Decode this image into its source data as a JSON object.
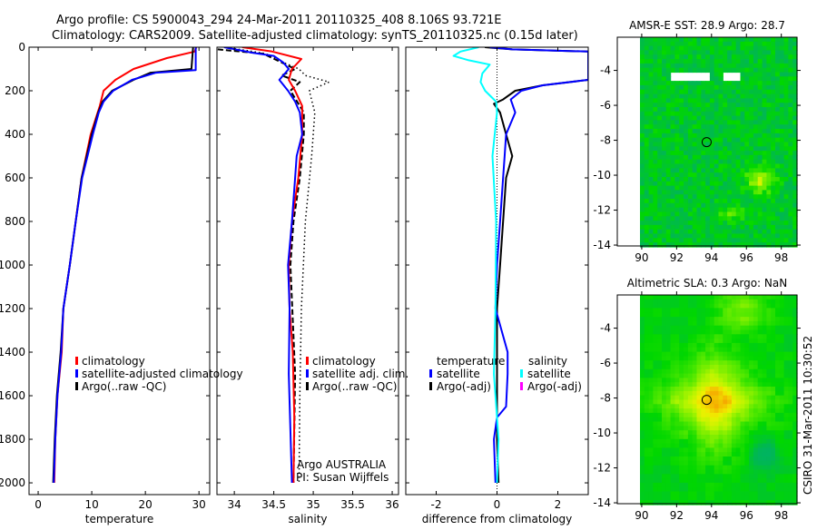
{
  "header": {
    "line1": "Argo profile: CS 5900043_294 24-Mar-2011 20110325_408 8.106S 93.721E",
    "line2": "Climatology: CARS2009. Satellite-adjusted climatology: synTS_20110325.nc (0.15d later)"
  },
  "footer_stamp": "CSIRO 31-Mar-2011 10:30:52",
  "colors": {
    "climatology": "#ff0000",
    "satellite": "#0000ff",
    "argo": "#000000",
    "salinity_satellite": "#00ffff",
    "salinity_argo": "#ff00ff"
  },
  "chart_data": [
    {
      "type": "line",
      "id": "temperature",
      "xlabel": "temperature",
      "ylabel": "",
      "xlim": [
        -1.7,
        32
      ],
      "ylim": [
        2054,
        0
      ],
      "xticks": [
        0,
        10,
        20,
        30
      ],
      "xtick_labels": [
        "0",
        "10",
        "20",
        "30"
      ],
      "yticks": [
        0,
        200,
        400,
        600,
        800,
        1000,
        1200,
        1400,
        1600,
        1800,
        2000
      ],
      "ytick_labels": [
        "0",
        "200",
        "400",
        "600",
        "800",
        "1000",
        "1200",
        "1400",
        "1600",
        "1800",
        "2000"
      ],
      "legend": [
        "climatology",
        "satellite-adjusted climatology",
        "Argo(..raw -QC)"
      ],
      "series": [
        {
          "name": "climatology",
          "color": "#ff0000",
          "style": "solid",
          "depth": [
            0,
            20,
            50,
            100,
            150,
            200,
            270,
            400,
            600,
            800,
            1000,
            1200,
            1400,
            1600,
            1800,
            2000
          ],
          "values": [
            29.5,
            29.2,
            24,
            17.8,
            14.4,
            12.2,
            11.5,
            9.8,
            8.1,
            7.0,
            5.9,
            4.7,
            4.4,
            3.6,
            3.2,
            3.0
          ]
        },
        {
          "name": "Argo",
          "color": "#000000",
          "style": "solid",
          "depth": [
            0,
            100,
            117,
            150,
            200,
            250,
            300,
            400,
            600,
            800,
            1000,
            1200,
            1400,
            1600,
            1800,
            2000
          ],
          "values": [
            28.9,
            28.6,
            21,
            17.8,
            13.8,
            12.0,
            11.2,
            10.0,
            8.1,
            7.0,
            5.9,
            4.7,
            4.2,
            3.5,
            3.1,
            2.8
          ]
        },
        {
          "name": "satellite-adjusted climatology",
          "color": "#0000ff",
          "style": "solid",
          "depth": [
            0,
            105,
            117,
            150,
            200,
            250,
            300,
            400,
            600,
            800,
            1000,
            1200,
            1400,
            1600,
            1800,
            2000
          ],
          "values": [
            29.4,
            29.4,
            22,
            17.5,
            14.0,
            12.2,
            11.3,
            10.2,
            8.2,
            7.0,
            5.9,
            4.7,
            4.3,
            3.6,
            3.2,
            2.9
          ]
        }
      ]
    },
    {
      "type": "line",
      "id": "salinity",
      "xlabel": "salinity",
      "xlim": [
        33.78,
        36.08
      ],
      "ylim": [
        2054,
        0
      ],
      "xticks": [
        34,
        34.5,
        35,
        35.5,
        36
      ],
      "xtick_labels": [
        "34",
        "34.5",
        "35",
        "35.5",
        "36"
      ],
      "yticks": [
        0,
        200,
        400,
        600,
        800,
        1000,
        1200,
        1400,
        1600,
        1800,
        2000
      ],
      "legend": [
        "climatology",
        "satellite adj. clim.",
        "Argo(..raw -QC)"
      ],
      "annotation": [
        "Argo AUSTRALIA",
        "PI: Susan Wijffels"
      ],
      "series": [
        {
          "name": "Argo raw",
          "color": "#000000",
          "style": "dotted",
          "depth": [
            0,
            30,
            70,
            100,
            130,
            160,
            200,
            300,
            500,
            800,
            1200,
            1600,
            2000
          ],
          "values": [
            33.9,
            34.4,
            34.62,
            34.82,
            34.9,
            35.2,
            34.95,
            35.02,
            34.98,
            34.9,
            34.85,
            34.83,
            34.82
          ]
        },
        {
          "name": "Argo",
          "color": "#000000",
          "style": "dashed",
          "depth": [
            10,
            30,
            60,
            100,
            130,
            160,
            200,
            300,
            400,
            600,
            800,
            1000,
            1500,
            2000
          ],
          "values": [
            33.79,
            34.37,
            34.54,
            34.77,
            34.6,
            34.83,
            34.71,
            34.88,
            34.88,
            34.83,
            34.75,
            34.71,
            34.77,
            34.75
          ]
        },
        {
          "name": "climatology",
          "color": "#ff0000",
          "style": "solid",
          "depth": [
            0,
            20,
            54,
            100,
            150,
            200,
            270,
            400,
            600,
            800,
            1000,
            1200,
            1400,
            1700,
            2000
          ],
          "values": [
            34.1,
            34.48,
            34.85,
            34.73,
            34.69,
            34.77,
            34.86,
            34.86,
            34.81,
            34.73,
            34.69,
            34.7,
            34.74,
            34.76,
            34.75
          ]
        },
        {
          "name": "satellite adj. clim.",
          "color": "#0000ff",
          "style": "solid",
          "depth": [
            0,
            25,
            40,
            70,
            100,
            150,
            200,
            250,
            300,
            400,
            500,
            600,
            800,
            1000,
            1200,
            1500,
            2000
          ],
          "values": [
            33.87,
            34.22,
            34.5,
            34.62,
            34.69,
            34.57,
            34.68,
            34.77,
            34.83,
            34.86,
            34.79,
            34.77,
            34.73,
            34.68,
            34.7,
            34.69,
            34.73
          ]
        }
      ]
    },
    {
      "type": "line",
      "id": "difference",
      "xlabel": "difference from climatology",
      "xlim": [
        -3,
        3
      ],
      "ylim": [
        2054,
        0
      ],
      "xticks": [
        -2,
        0,
        2
      ],
      "xtick_labels": [
        "-2",
        "0",
        "2"
      ],
      "yticks": [
        0,
        200,
        400,
        600,
        800,
        1000,
        1200,
        1400,
        1600,
        1800,
        2000
      ],
      "legend_temperature_title": "temperature",
      "legend_salinity_title": "salinity",
      "legend": [
        "satellite",
        "Argo(-adj)",
        "satellite",
        "Argo(-adj)"
      ],
      "series": [
        {
          "name": "temperature Argo(-adj)",
          "color": "#000000",
          "style": "solid",
          "depth": [
            0,
            10,
            20,
            60,
            150,
            175,
            200,
            240,
            260,
            300,
            400,
            500,
            600,
            800,
            1000,
            1200,
            1500,
            1800,
            2000
          ],
          "values": [
            -0.4,
            0.5,
            3.0,
            3.0,
            3.0,
            1.5,
            0.6,
            0.2,
            -0.1,
            0.1,
            0.3,
            0.5,
            0.3,
            0.2,
            0.1,
            0.0,
            0.0,
            0.0,
            0.05
          ]
        },
        {
          "name": "temperature satellite",
          "color": "#0000ff",
          "style": "solid",
          "depth": [
            0,
            10,
            20,
            60,
            150,
            175,
            200,
            240,
            300,
            400,
            500,
            600,
            800,
            1000,
            1200,
            1400,
            1500,
            1650,
            1700,
            1800,
            2000
          ],
          "values": [
            -0.24,
            0.5,
            3.0,
            3.0,
            3.0,
            1.5,
            0.8,
            0.45,
            0.6,
            0.3,
            0.25,
            0.2,
            0.1,
            0.0,
            -0.05,
            0.35,
            0.35,
            0.3,
            0.0,
            -0.1,
            -0.05
          ]
        },
        {
          "name": "salinity satellite",
          "color": "#00ffff",
          "style": "solid",
          "depth": [
            0,
            20,
            40,
            60,
            80,
            120,
            160,
            200,
            250,
            300,
            500,
            800,
            1200,
            1500,
            1800,
            2000
          ],
          "values": [
            -0.6,
            -1.2,
            -1.43,
            -0.93,
            -0.24,
            -0.48,
            -0.54,
            -0.39,
            -0.03,
            0.0,
            -0.15,
            -0.03,
            -0.05,
            -0.1,
            0.05,
            0.0
          ]
        }
      ]
    },
    {
      "type": "heatmap",
      "id": "sst_map",
      "title": "AMSR-E SST: 28.9 Argo: 28.7",
      "xlim": [
        88.6,
        98.9
      ],
      "ylim": [
        -14.05,
        -2.1
      ],
      "xticks": [
        90,
        92,
        94,
        96,
        98
      ],
      "xtick_labels": [
        "90",
        "92",
        "94",
        "96",
        "98"
      ],
      "yticks": [
        -4,
        -6,
        -8,
        -10,
        -12,
        -14
      ],
      "ytick_labels": [
        "-4",
        "-6",
        "-8",
        "-10",
        "-12",
        "-14"
      ],
      "argo_position": {
        "lon": 93.721,
        "lat": -8.106
      }
    },
    {
      "type": "heatmap",
      "id": "sla_map",
      "title": "Altimetric SLA: 0.3 Argo: NaN",
      "xlim": [
        88.6,
        98.9
      ],
      "ylim": [
        -14.05,
        -2.1
      ],
      "xticks": [
        90,
        92,
        94,
        96,
        98
      ],
      "xtick_labels": [
        "90",
        "92",
        "94",
        "96",
        "98"
      ],
      "yticks": [
        -4,
        -6,
        -8,
        -10,
        -12,
        -14
      ],
      "ytick_labels": [
        "-4",
        "-6",
        "-8",
        "-10",
        "-12",
        "-14"
      ],
      "argo_position": {
        "lon": 93.721,
        "lat": -8.106
      }
    }
  ]
}
